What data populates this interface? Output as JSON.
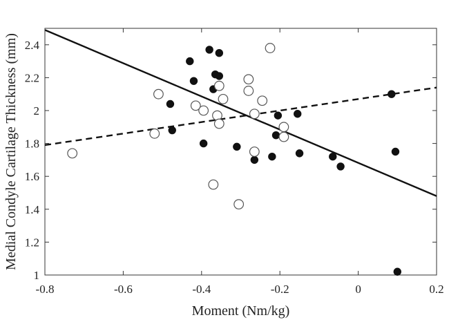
{
  "chart_data": {
    "type": "scatter",
    "title": "",
    "xlabel": "Moment (Nm/kg)",
    "ylabel": "Medial Condyle Cartilage Thickness (mm)",
    "xlim": [
      -0.8,
      0.2
    ],
    "ylim": [
      1,
      2.5
    ],
    "xticks": [
      -0.8,
      -0.6,
      -0.4,
      -0.2,
      0,
      0.2
    ],
    "xtick_labels": [
      "-0.8",
      "-0.6",
      "-0.4",
      "-0.2",
      "0",
      "0.2"
    ],
    "yticks": [
      1,
      1.2,
      1.4,
      1.6,
      1.8,
      2,
      2.2,
      2.4
    ],
    "ytick_labels": [
      "1",
      "1.2",
      "1.4",
      "1.6",
      "1.8",
      "2",
      "2.2",
      "2.4"
    ],
    "grid": false,
    "series": [
      {
        "marker": "filled-circle",
        "points": [
          [
            -0.43,
            2.3
          ],
          [
            -0.42,
            2.18
          ],
          [
            -0.38,
            2.37
          ],
          [
            -0.37,
            2.13
          ],
          [
            -0.365,
            2.22
          ],
          [
            -0.355,
            2.21
          ],
          [
            -0.355,
            2.35
          ],
          [
            -0.48,
            2.04
          ],
          [
            -0.475,
            1.88
          ],
          [
            -0.395,
            1.8
          ],
          [
            -0.31,
            1.78
          ],
          [
            -0.265,
            1.7
          ],
          [
            -0.22,
            1.72
          ],
          [
            -0.21,
            1.85
          ],
          [
            -0.205,
            1.97
          ],
          [
            -0.155,
            1.98
          ],
          [
            -0.15,
            1.74
          ],
          [
            -0.065,
            1.72
          ],
          [
            -0.045,
            1.66
          ],
          [
            0.085,
            2.1
          ],
          [
            0.095,
            1.75
          ],
          [
            0.1,
            1.02
          ]
        ]
      },
      {
        "marker": "open-circle",
        "points": [
          [
            -0.73,
            1.74
          ],
          [
            -0.51,
            2.1
          ],
          [
            -0.52,
            1.86
          ],
          [
            -0.415,
            2.03
          ],
          [
            -0.395,
            2.0
          ],
          [
            -0.36,
            1.97
          ],
          [
            -0.355,
            2.15
          ],
          [
            -0.345,
            2.07
          ],
          [
            -0.355,
            1.92
          ],
          [
            -0.37,
            1.55
          ],
          [
            -0.305,
            1.43
          ],
          [
            -0.28,
            2.19
          ],
          [
            -0.28,
            2.12
          ],
          [
            -0.265,
            1.98
          ],
          [
            -0.265,
            1.75
          ],
          [
            -0.245,
            2.06
          ],
          [
            -0.225,
            2.38
          ],
          [
            -0.19,
            1.9
          ],
          [
            -0.19,
            1.84
          ]
        ]
      }
    ],
    "fit_lines": [
      {
        "style": "solid",
        "x": [
          -0.8,
          0.2
        ],
        "y": [
          2.49,
          1.48
        ]
      },
      {
        "style": "dashed",
        "x": [
          -0.8,
          0.2
        ],
        "y": [
          1.79,
          2.14
        ]
      }
    ]
  }
}
